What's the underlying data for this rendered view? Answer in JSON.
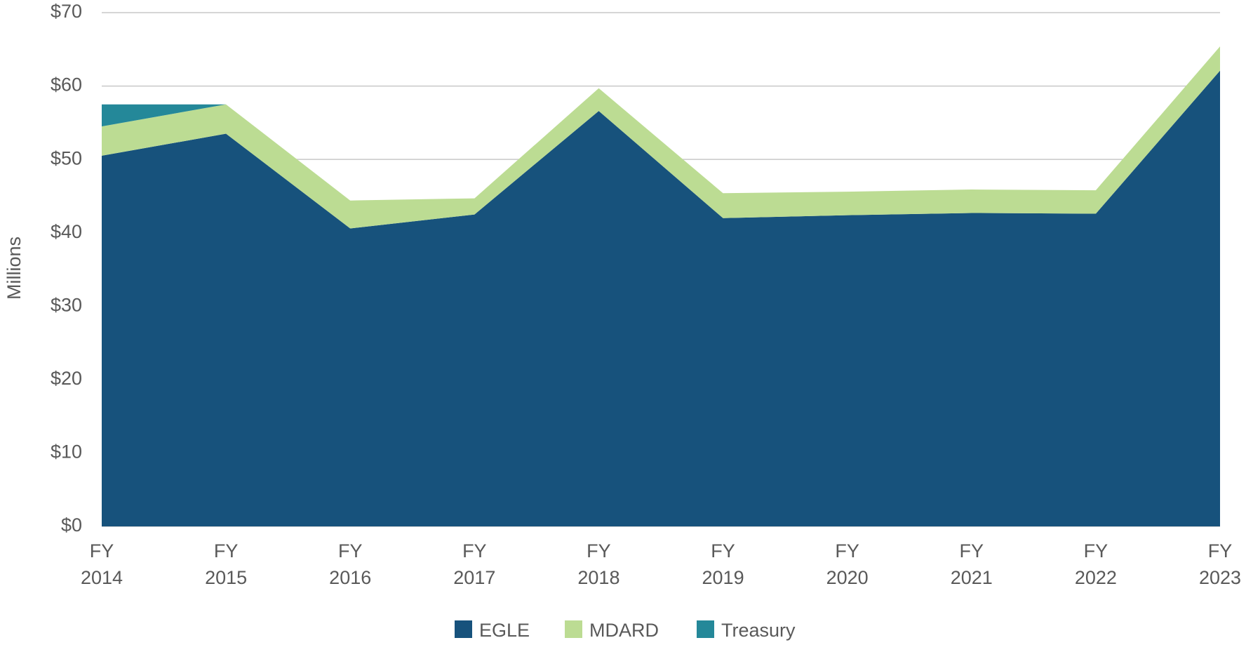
{
  "chart_data": {
    "type": "stacked_area",
    "y_label": "Millions",
    "categories": [
      "FY 2014",
      "FY 2015",
      "FY 2016",
      "FY 2017",
      "FY 2018",
      "FY 2019",
      "FY 2020",
      "FY 2021",
      "FY 2022",
      "FY 2023"
    ],
    "series": [
      {
        "name": "EGLE",
        "color": "#17527c",
        "values": [
          50.5,
          53.5,
          40.6,
          42.5,
          56.6,
          42.0,
          42.4,
          42.7,
          42.6,
          62.1
        ]
      },
      {
        "name": "MDARD",
        "color": "#bcdc93",
        "values": [
          4.0,
          4.0,
          3.8,
          2.2,
          3.1,
          3.4,
          3.2,
          3.2,
          3.2,
          3.3
        ]
      },
      {
        "name": "Treasury",
        "color": "#248899",
        "values": [
          3.0,
          0,
          0,
          0,
          0,
          0,
          0,
          0,
          0,
          0
        ]
      }
    ],
    "ylim": [
      0,
      70
    ],
    "yticks": [
      {
        "value": 0,
        "label": "$0"
      },
      {
        "value": 10,
        "label": "$10"
      },
      {
        "value": 20,
        "label": "$20"
      },
      {
        "value": 30,
        "label": "$30"
      },
      {
        "value": 40,
        "label": "$40"
      },
      {
        "value": 50,
        "label": "$50"
      },
      {
        "value": 60,
        "label": "$60"
      },
      {
        "value": 70,
        "label": "$70"
      }
    ],
    "grid": true,
    "legend": "bottom"
  }
}
